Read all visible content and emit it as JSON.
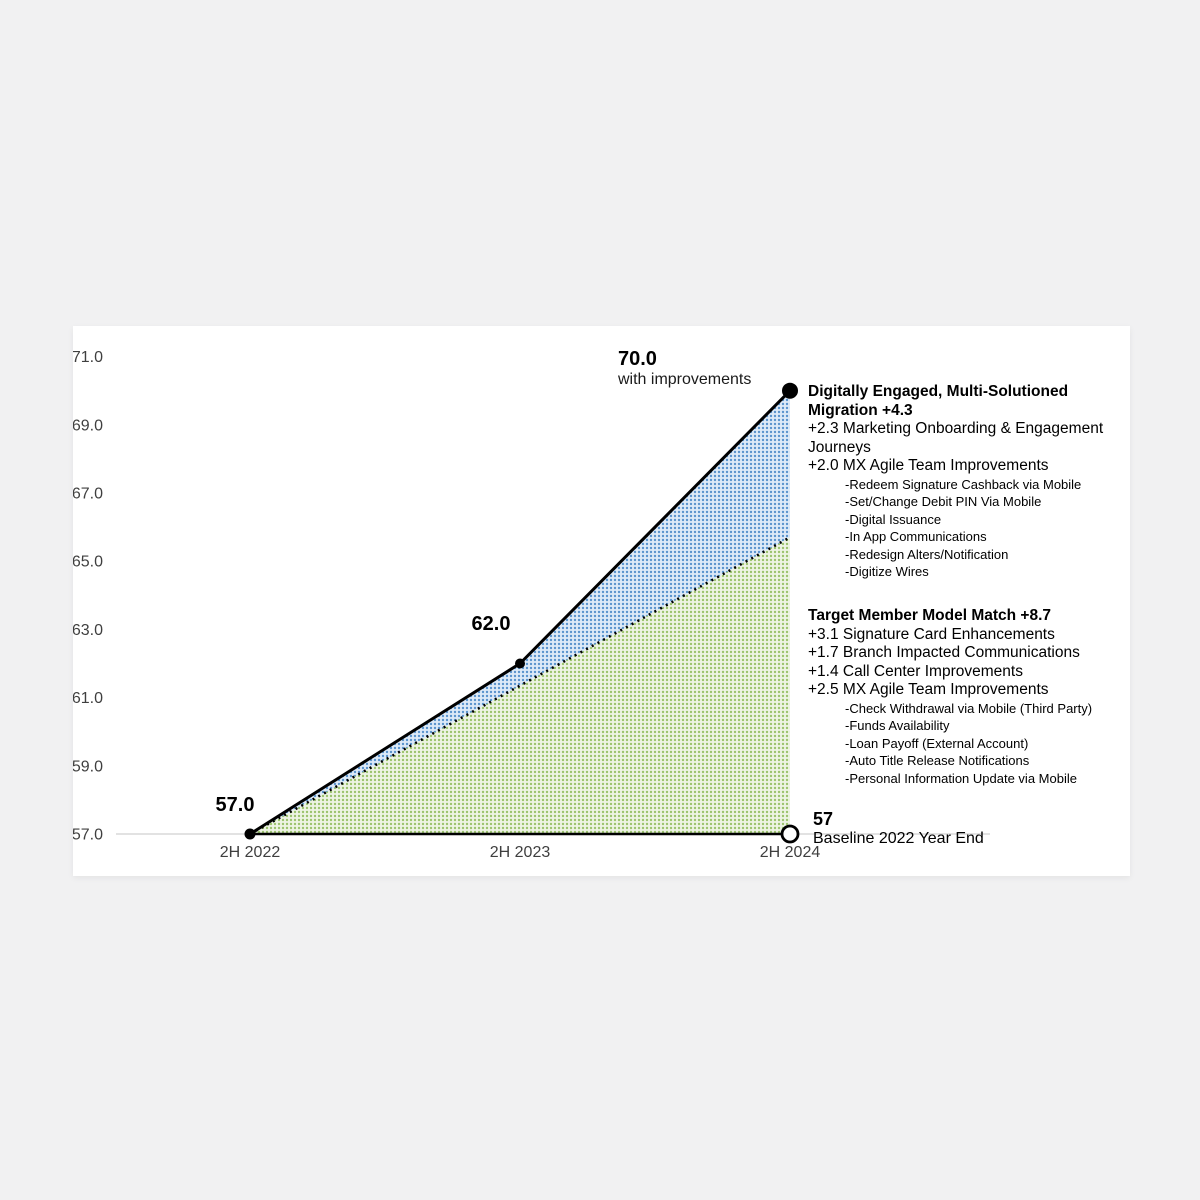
{
  "page": {
    "background_color": "#f1f1f2",
    "card_color": "#ffffff"
  },
  "chart_data": {
    "type": "line",
    "title": "",
    "x_labels": [
      "2H 2022",
      "2H 2023",
      "2H 2024"
    ],
    "y_tick_labels": [
      "71.0",
      "69.0",
      "67.0",
      "65.0",
      "63.0",
      "61.0",
      "59.0",
      "57.0"
    ],
    "ylim": [
      57,
      71
    ],
    "grid": "single light horizontal line at y=57",
    "legend_position": "none",
    "series": [
      {
        "name": "Score with improvements",
        "style": "solid-black",
        "marker": "filled-circle",
        "values": [
          57.0,
          62.0,
          70.0
        ],
        "area_fill": "blue-dot-halftone"
      },
      {
        "name": "Target Member Model Match trajectory (+8.7)",
        "style": "dotted-black",
        "x_labels": [
          "2H 2022",
          "2H 2024"
        ],
        "values": [
          57.0,
          65.7
        ],
        "area_fill": "green-dot-halftone"
      },
      {
        "name": "Baseline 2022 Year End",
        "style": "solid-black-flat",
        "marker": "open-circle-at-end",
        "values": [
          57,
          57
        ]
      }
    ],
    "point_labels": [
      "57.0",
      "62.0",
      "70.0"
    ],
    "colors": {
      "line": "#000000",
      "gridline": "#d9d9d9",
      "blue_area_bg": "#ddeaf8",
      "blue_area_dot": "#5b94cd",
      "green_area_bg": "#eef4e4",
      "green_area_dot": "#9cc36e"
    }
  },
  "annotations": {
    "top_caption": "with improvements",
    "digitally_engaged": {
      "title": "Digitally Engaged, Multi-Solutioned Migration +4.3",
      "items": [
        "+2.3 Marketing Onboarding & Engagement Journeys",
        "+2.0 MX Agile Team Improvements"
      ],
      "sub_items": [
        "-Redeem Signature Cashback via Mobile",
        "-Set/Change Debit PIN Via Mobile",
        "-Digital Issuance",
        "-In App Communications",
        "-Redesign Alters/Notification",
        "-Digitize Wires"
      ]
    },
    "target_member": {
      "title": "Target Member Model Match +8.7",
      "items": [
        "+3.1 Signature Card Enhancements",
        "+1.7 Branch Impacted Communications",
        "+1.4 Call Center Improvements",
        "+2.5 MX Agile Team Improvements"
      ],
      "sub_items": [
        "-Check Withdrawal via Mobile (Third Party)",
        "-Funds Availability",
        "-Loan Payoff (External Account)",
        "-Auto Title Release Notifications",
        "-Personal Information Update via Mobile"
      ]
    },
    "baseline": {
      "value": "57",
      "label": "Baseline 2022 Year End"
    }
  }
}
